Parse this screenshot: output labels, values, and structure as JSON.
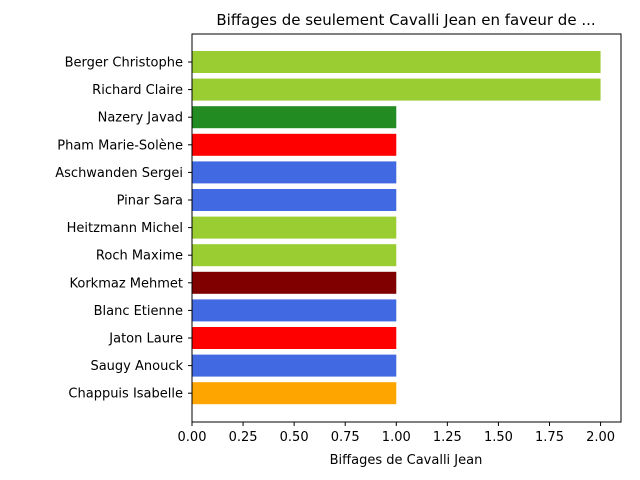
{
  "chart_data": {
    "type": "bar",
    "orientation": "horizontal",
    "title": "Biffages de seulement Cavalli Jean en faveur de ...",
    "xlabel": "Biffages de Cavalli Jean",
    "ylabel": "",
    "xlim": [
      0,
      2.1
    ],
    "xticks": [
      "0.00",
      "0.25",
      "0.50",
      "0.75",
      "1.00",
      "1.25",
      "1.50",
      "1.75",
      "2.00"
    ],
    "grid": false,
    "categories": [
      "Berger Christophe",
      "Richard Claire",
      "Nazery Javad",
      "Pham Marie-Solène",
      "Aschwanden Sergei",
      "Pinar Sara",
      "Heitzmann Michel",
      "Roch Maxime",
      "Korkmaz Mehmet",
      "Blanc Etienne",
      "Jaton Laure",
      "Saugy Anouck",
      "Chappuis Isabelle"
    ],
    "values": [
      2,
      2,
      1,
      1,
      1,
      1,
      1,
      1,
      1,
      1,
      1,
      1,
      1
    ],
    "colors": [
      "#9acd32",
      "#9acd32",
      "#228b22",
      "#ff0000",
      "#4169e1",
      "#4169e1",
      "#9acd32",
      "#9acd32",
      "#800000",
      "#4169e1",
      "#ff0000",
      "#4169e1",
      "#ffa500"
    ]
  }
}
